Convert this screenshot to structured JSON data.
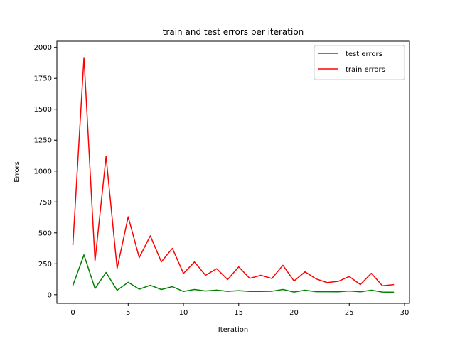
{
  "chart_data": {
    "type": "line",
    "title": "train and test errors per iteration",
    "xlabel": "Iteration",
    "ylabel": "Errors",
    "xlim": [
      -1.45,
      30.45
    ],
    "ylim": [
      -70,
      2050
    ],
    "xticks": [
      0,
      5,
      10,
      15,
      20,
      25,
      30
    ],
    "yticks": [
      0,
      250,
      500,
      750,
      1000,
      1250,
      1500,
      1750,
      2000
    ],
    "grid": false,
    "legend_position": "top-right",
    "x": [
      0,
      1,
      2,
      3,
      4,
      5,
      6,
      7,
      8,
      9,
      10,
      11,
      12,
      13,
      14,
      15,
      16,
      17,
      18,
      19,
      20,
      21,
      22,
      23,
      24,
      25,
      26,
      27,
      28,
      29
    ],
    "series": [
      {
        "name": "test errors",
        "color": "#008000",
        "values": [
          75,
          322,
          50,
          180,
          36,
          100,
          45,
          76,
          42,
          65,
          26,
          42,
          30,
          37,
          27,
          33,
          26,
          26,
          28,
          42,
          21,
          36,
          24,
          24,
          23,
          30,
          23,
          36,
          21,
          20
        ]
      },
      {
        "name": "train errors",
        "color": "#ff0000",
        "values": [
          405,
          1918,
          272,
          1118,
          213,
          630,
          300,
          476,
          266,
          375,
          172,
          265,
          157,
          210,
          123,
          225,
          132,
          157,
          131,
          238,
          111,
          185,
          128,
          98,
          108,
          147,
          82,
          173,
          72,
          81
        ]
      }
    ]
  }
}
